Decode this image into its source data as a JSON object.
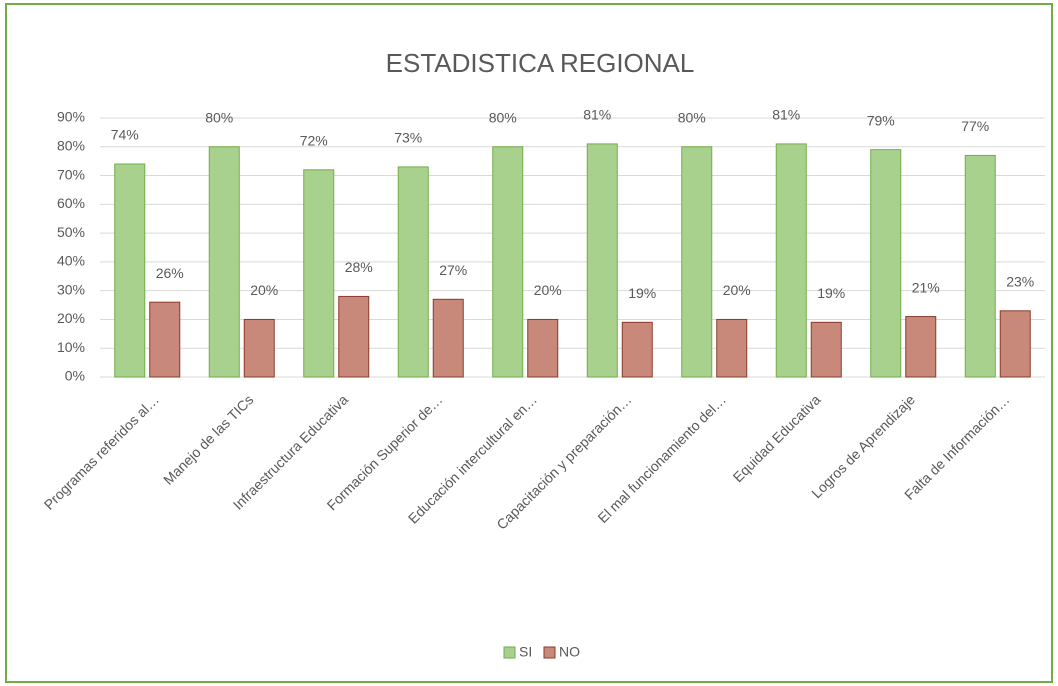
{
  "chart_data": {
    "type": "bar",
    "title": "ESTADISTICA REGIONAL",
    "categories": [
      "Programas referidos al…",
      "Manejo de las TICs",
      "Infraestructura Educativa",
      "Formación Superior de…",
      "Educación intercultural en…",
      "Capacitación y preparación…",
      "El mal funcionamiento del…",
      "Equidad Educativa",
      "Logros de Aprendizaje",
      "Falta de Información…"
    ],
    "series": [
      {
        "name": "SI",
        "color": "#a9d18e",
        "values": [
          74,
          80,
          72,
          73,
          80,
          81,
          80,
          81,
          79,
          77
        ],
        "value_labels": [
          "74%",
          "80%",
          "72%",
          "73%",
          "80%",
          "81%",
          "80%",
          "81%",
          "79%",
          "77%"
        ]
      },
      {
        "name": "NO",
        "color": "#c9897a",
        "values": [
          26,
          20,
          28,
          27,
          20,
          19,
          20,
          19,
          21,
          23
        ],
        "value_labels": [
          "26%",
          "20%",
          "28%",
          "27%",
          "20%",
          "19%",
          "20%",
          "19%",
          "21%",
          "23%"
        ]
      }
    ],
    "ylim": [
      0,
      90
    ],
    "yticks": [
      {
        "value": 0,
        "label": "0%"
      },
      {
        "value": 10,
        "label": "10%"
      },
      {
        "value": 20,
        "label": "20%"
      },
      {
        "value": 30,
        "label": "30%"
      },
      {
        "value": 40,
        "label": "40%"
      },
      {
        "value": 50,
        "label": "50%"
      },
      {
        "value": 60,
        "label": "60%"
      },
      {
        "value": 70,
        "label": "70%"
      },
      {
        "value": 80,
        "label": "80%"
      },
      {
        "value": 90,
        "label": "90%"
      }
    ],
    "grid": true,
    "legend": "bottom"
  }
}
